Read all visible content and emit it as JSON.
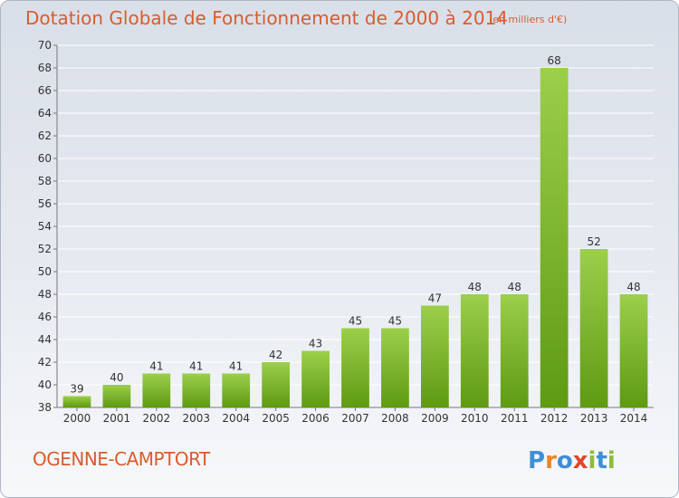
{
  "header": {
    "title": "Dotation Globale de Fonctionnement de 2000 à 2014",
    "unit": "(en milliers d'€)"
  },
  "footer": {
    "commune": "OGENNE-CAMPTORT",
    "brand": "Proxiti"
  },
  "colors": {
    "accent": "#d85d2c",
    "bar_light": "#9ccf4a",
    "bar_dark": "#5e9a12"
  },
  "chart_data": {
    "type": "bar",
    "categories": [
      "2000",
      "2001",
      "2002",
      "2003",
      "2004",
      "2005",
      "2006",
      "2007",
      "2008",
      "2009",
      "2010",
      "2011",
      "2012",
      "2013",
      "2014"
    ],
    "values": [
      39,
      40,
      41,
      41,
      41,
      42,
      43,
      45,
      45,
      47,
      48,
      48,
      68,
      52,
      48
    ],
    "title": "Dotation Globale de Fonctionnement de 2000 à 2014",
    "subtitle": "(en milliers d'€)",
    "xlabel": "",
    "ylabel": "",
    "ylim": [
      38,
      70
    ],
    "yticks": [
      38,
      40,
      42,
      44,
      46,
      48,
      50,
      52,
      54,
      56,
      58,
      60,
      62,
      64,
      66,
      68,
      70
    ],
    "grid": true,
    "legend": "none",
    "data_labels": true
  }
}
